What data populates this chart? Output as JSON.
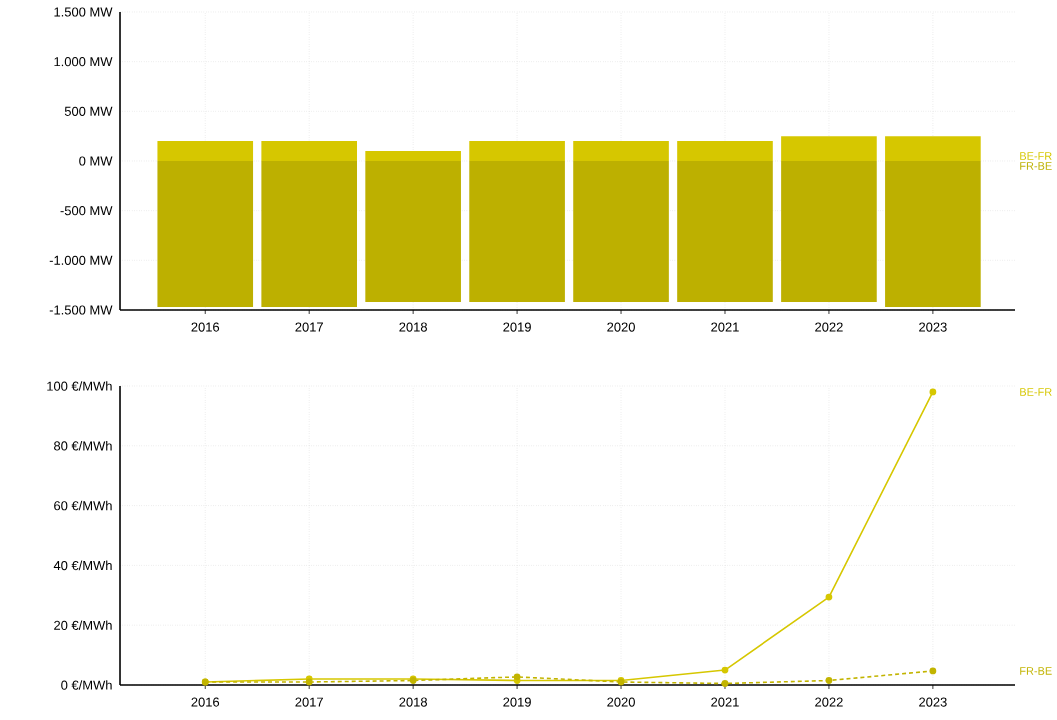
{
  "chart_data": [
    {
      "type": "bar",
      "categories": [
        "2016",
        "2017",
        "2018",
        "2019",
        "2020",
        "2021",
        "2022",
        "2023"
      ],
      "series": [
        {
          "name": "BE-FR",
          "color": "#d6c700",
          "values": [
            200,
            200,
            100,
            200,
            200,
            200,
            250,
            250
          ]
        },
        {
          "name": "FR-BE",
          "color": "#bdb000",
          "values": [
            -1470,
            -1470,
            -1420,
            -1420,
            -1420,
            -1420,
            -1420,
            -1470
          ]
        }
      ],
      "ylim": [
        -1500,
        1500
      ],
      "yticks": [
        {
          "value": -1500,
          "label": "-1.500 MW"
        },
        {
          "value": -1000,
          "label": "-1.000 MW"
        },
        {
          "value": -500,
          "label": "-500 MW"
        },
        {
          "value": 0,
          "label": "0 MW"
        },
        {
          "value": 500,
          "label": "500 MW"
        },
        {
          "value": 1000,
          "label": "1.000 MW"
        },
        {
          "value": 1500,
          "label": "1.500 MW"
        }
      ],
      "grid": true,
      "stacked": true
    },
    {
      "type": "line",
      "categories": [
        "2016",
        "2017",
        "2018",
        "2019",
        "2020",
        "2021",
        "2022",
        "2023"
      ],
      "series": [
        {
          "name": "BE-FR",
          "color": "#d6c700",
          "values": [
            1,
            2,
            2,
            1.5,
            1.5,
            5,
            29.4,
            98
          ]
        },
        {
          "name": "FR-BE",
          "color": "#c2b400",
          "line_style": "dashed",
          "values": [
            1,
            1,
            1.5,
            2.7,
            1,
            0.5,
            1.5,
            4.7
          ]
        }
      ],
      "ylim": [
        0,
        100
      ],
      "yticks": [
        {
          "value": 0,
          "label": "0 €/MWh"
        },
        {
          "value": 20,
          "label": "20 €/MWh"
        },
        {
          "value": 40,
          "label": "40 €/MWh"
        },
        {
          "value": 60,
          "label": "60 €/MWh"
        },
        {
          "value": 80,
          "label": "80 €/MWh"
        },
        {
          "value": 100,
          "label": "100 €/MWh"
        }
      ],
      "grid": true,
      "marker": "circle"
    }
  ]
}
